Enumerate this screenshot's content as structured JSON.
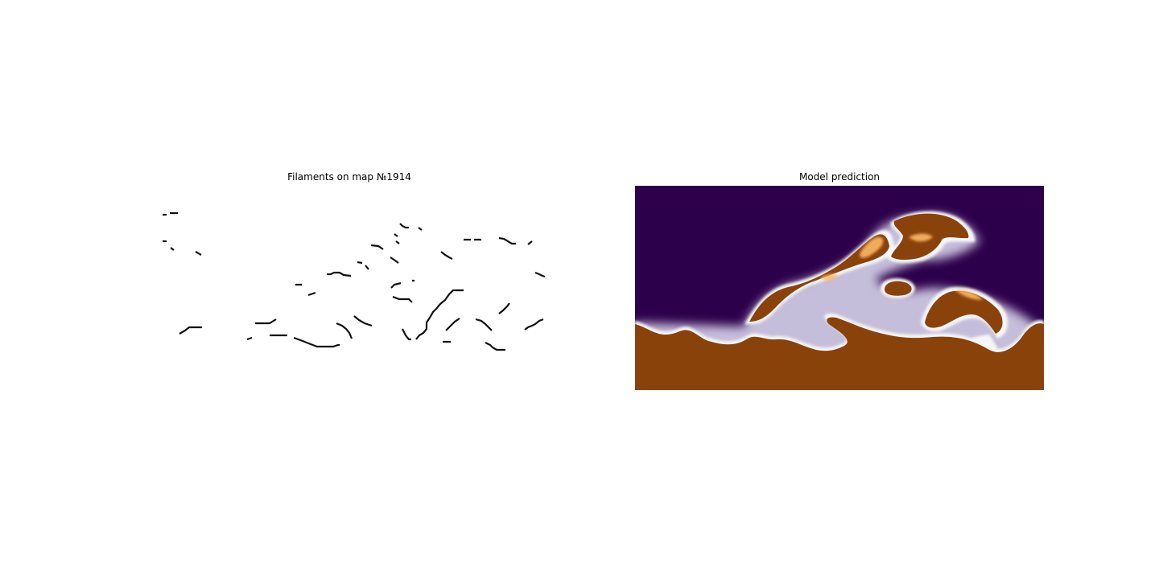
{
  "figure": {
    "left_title": "Filaments on map №1914",
    "right_title": "Model prediction"
  },
  "chart_data": [
    {
      "type": "heatmap",
      "title": "Filaments on map №1914",
      "xlabel": "",
      "ylabel": "",
      "colormap": "gray_r",
      "axes": "off",
      "colors": {
        "background": "#ffffff",
        "filament": "#111111"
      }
    },
    {
      "type": "heatmap",
      "title": "Model prediction",
      "xlabel": "",
      "ylabel": "",
      "colormap": "PuOr",
      "axes": "off",
      "colors": {
        "low": "#2d004b",
        "mid": "#f7f7f7",
        "light_orange": "#fdb863",
        "high": "#7f3b08",
        "orange": "#e08214"
      }
    }
  ]
}
